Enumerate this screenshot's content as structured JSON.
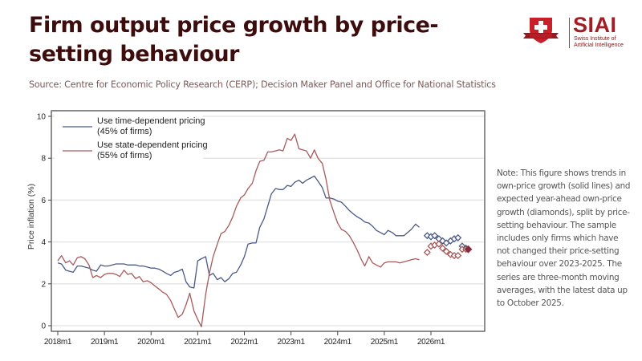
{
  "header": {
    "title": "Firm output price growth by price-setting behaviour",
    "source": "Source: Centre for Economic Policy Research (CERP); Decision Maker Panel and Office for National Statistics"
  },
  "logo": {
    "brand": "SIAI",
    "subtitle_line1": "Swiss Institute of",
    "subtitle_line2": "Artificial Intelligence",
    "brand_color": "#a31d24"
  },
  "note": "Note: This figure shows trends in own-price growth (solid lines) and expected year-ahead own-price growth (diamonds), split by price-setting behaviour. The sample includes only firms which have not changed their price-setting behaviour over 2023-2025. The series are three-month moving averages, with the latest data up to October 2025.",
  "chart_data": {
    "type": "line",
    "title": "Firm output price growth by price-setting behaviour",
    "xlabel": "",
    "ylabel": "Price inflation (%)",
    "ylim": [
      0,
      10
    ],
    "yticks": [
      0,
      2,
      4,
      6,
      8,
      10
    ],
    "xlim": [
      2018.0,
      2026.9
    ],
    "xticks": [
      {
        "value": 2018.0,
        "label": "2018m1"
      },
      {
        "value": 2019.0,
        "label": "2019m1"
      },
      {
        "value": 2020.0,
        "label": "2020m1"
      },
      {
        "value": 2021.0,
        "label": "2021m1"
      },
      {
        "value": 2022.0,
        "label": "2022m1"
      },
      {
        "value": 2023.0,
        "label": "2023m1"
      },
      {
        "value": 2024.0,
        "label": "2024m1"
      },
      {
        "value": 2025.0,
        "label": "2025m1"
      },
      {
        "value": 2026.0,
        "label": "2026m1"
      }
    ],
    "grid": true,
    "legend_position": "top-left",
    "series": [
      {
        "name": "Use time-dependent pricing (45% of firms)",
        "legend_line1": "Use time-dependent pricing",
        "legend_line2": "(45% of firms)",
        "color": "#4a5a86",
        "x": [
          2018.0,
          2018.08,
          2018.17,
          2018.25,
          2018.33,
          2018.42,
          2018.5,
          2018.58,
          2018.67,
          2018.75,
          2018.83,
          2018.92,
          2019.0,
          2019.08,
          2019.17,
          2019.25,
          2019.33,
          2019.42,
          2019.5,
          2019.58,
          2019.67,
          2019.75,
          2019.83,
          2019.92,
          2020.0,
          2020.08,
          2020.17,
          2020.25,
          2020.33,
          2020.42,
          2020.5,
          2020.58,
          2020.67,
          2020.75,
          2020.83,
          2020.92,
          2021.0,
          2021.08,
          2021.17,
          2021.25,
          2021.33,
          2021.42,
          2021.5,
          2021.58,
          2021.67,
          2021.75,
          2021.83,
          2021.92,
          2022.0,
          2022.08,
          2022.17,
          2022.25,
          2022.33,
          2022.42,
          2022.5,
          2022.58,
          2022.67,
          2022.75,
          2022.83,
          2022.92,
          2023.0,
          2023.08,
          2023.17,
          2023.25,
          2023.33,
          2023.42,
          2023.5,
          2023.58,
          2023.67,
          2023.75,
          2023.83,
          2023.92,
          2024.0,
          2024.08,
          2024.17,
          2024.25,
          2024.33,
          2024.42,
          2024.5,
          2024.58,
          2024.67,
          2024.75,
          2024.83,
          2024.92,
          2025.0,
          2025.08,
          2025.17,
          2025.25,
          2025.33,
          2025.42,
          2025.5,
          2025.58,
          2025.67,
          2025.75
        ],
        "values": [
          3.0,
          2.95,
          2.65,
          2.6,
          2.55,
          2.85,
          2.85,
          2.8,
          2.75,
          2.65,
          2.6,
          2.9,
          2.85,
          2.85,
          2.9,
          2.95,
          2.95,
          2.95,
          2.9,
          2.9,
          2.9,
          2.85,
          2.85,
          2.8,
          2.75,
          2.75,
          2.7,
          2.6,
          2.5,
          2.4,
          2.55,
          2.6,
          2.7,
          2.1,
          1.85,
          1.8,
          3.1,
          3.2,
          3.3,
          2.4,
          2.5,
          2.2,
          2.3,
          2.1,
          2.25,
          2.5,
          2.55,
          2.9,
          3.3,
          3.9,
          3.95,
          3.95,
          4.7,
          5.1,
          5.7,
          6.3,
          6.55,
          6.5,
          6.5,
          6.7,
          6.65,
          6.85,
          6.95,
          6.8,
          6.95,
          7.05,
          7.15,
          6.9,
          6.6,
          6.1,
          6.1,
          6.05,
          5.95,
          5.9,
          5.7,
          5.5,
          5.35,
          5.2,
          5.1,
          4.95,
          4.9,
          4.75,
          4.55,
          4.45,
          4.35,
          4.55,
          4.45,
          4.3,
          4.3,
          4.3,
          4.45,
          4.6,
          4.85,
          4.7
        ]
      },
      {
        "name": "Use state-dependent pricing (55% of firms)",
        "legend_line1": "Use state-dependent pricing",
        "legend_line2": "(55% of firms)",
        "color": "#a85a5a",
        "x": [
          2018.0,
          2018.08,
          2018.17,
          2018.25,
          2018.33,
          2018.42,
          2018.5,
          2018.58,
          2018.67,
          2018.75,
          2018.83,
          2018.92,
          2019.0,
          2019.08,
          2019.17,
          2019.25,
          2019.33,
          2019.42,
          2019.5,
          2019.58,
          2019.67,
          2019.75,
          2019.83,
          2019.92,
          2020.0,
          2020.08,
          2020.17,
          2020.25,
          2020.33,
          2020.42,
          2020.5,
          2020.58,
          2020.67,
          2020.75,
          2020.83,
          2020.92,
          2021.0,
          2021.08,
          2021.17,
          2021.25,
          2021.33,
          2021.42,
          2021.5,
          2021.58,
          2021.67,
          2021.75,
          2021.83,
          2021.92,
          2022.0,
          2022.08,
          2022.17,
          2022.25,
          2022.33,
          2022.42,
          2022.5,
          2022.58,
          2022.67,
          2022.75,
          2022.83,
          2022.92,
          2023.0,
          2023.08,
          2023.17,
          2023.25,
          2023.33,
          2023.42,
          2023.5,
          2023.58,
          2023.67,
          2023.75,
          2023.83,
          2023.92,
          2024.0,
          2024.08,
          2024.17,
          2024.25,
          2024.33,
          2024.42,
          2024.5,
          2024.58,
          2024.67,
          2024.75,
          2024.83,
          2024.92,
          2025.0,
          2025.08,
          2025.17,
          2025.25,
          2025.33,
          2025.42,
          2025.5,
          2025.58,
          2025.67,
          2025.75
        ],
        "values": [
          3.1,
          3.35,
          3.0,
          3.1,
          2.9,
          3.25,
          3.3,
          3.2,
          2.9,
          2.3,
          2.4,
          2.3,
          2.45,
          2.5,
          2.5,
          2.45,
          2.35,
          2.65,
          2.45,
          2.5,
          2.25,
          2.35,
          2.1,
          2.15,
          2.05,
          1.9,
          1.75,
          1.6,
          1.5,
          1.2,
          0.8,
          0.4,
          0.55,
          1.0,
          1.55,
          0.7,
          0.3,
          -0.05,
          1.5,
          2.5,
          3.3,
          3.9,
          4.4,
          4.5,
          4.8,
          5.2,
          5.7,
          6.1,
          6.25,
          6.55,
          6.8,
          7.4,
          7.85,
          7.9,
          8.3,
          8.3,
          8.35,
          8.4,
          8.35,
          8.95,
          8.85,
          9.15,
          8.45,
          8.4,
          8.35,
          8.0,
          8.4,
          8.0,
          7.75,
          7.0,
          6.0,
          5.4,
          4.9,
          4.6,
          4.5,
          4.3,
          4.0,
          3.6,
          3.2,
          2.85,
          3.3,
          3.0,
          2.9,
          2.8,
          3.0,
          3.05,
          3.05,
          3.05,
          3.0,
          3.05,
          3.1,
          3.15,
          3.2,
          3.15
        ]
      }
    ],
    "expectations": [
      {
        "name": "Expected year-ahead own-price growth (time-dependent)",
        "color": "#4a5a86",
        "marker": "hollow-diamond",
        "x": [
          2025.92,
          2026.0,
          2026.08,
          2026.17,
          2026.25,
          2026.33,
          2026.42,
          2026.5,
          2026.58,
          2026.67,
          2026.75
        ],
        "values": [
          4.3,
          4.25,
          4.3,
          4.15,
          4.05,
          3.95,
          4.05,
          4.15,
          4.2,
          3.8,
          3.7
        ]
      },
      {
        "name": "Expected year-ahead own-price growth (state-dependent)",
        "color": "#a85a5a",
        "marker": "hollow-diamond",
        "x": [
          2025.92,
          2026.0,
          2026.08,
          2026.17,
          2026.25,
          2026.33,
          2026.42,
          2026.5,
          2026.58,
          2026.67,
          2026.75
        ],
        "values": [
          3.5,
          3.8,
          3.85,
          3.9,
          3.7,
          3.55,
          3.4,
          3.35,
          3.35,
          3.65,
          3.65
        ]
      }
    ],
    "latest_marker": {
      "x": 2026.8,
      "value": 3.65,
      "color": "#8a2a3a",
      "marker": "filled-diamond"
    }
  }
}
